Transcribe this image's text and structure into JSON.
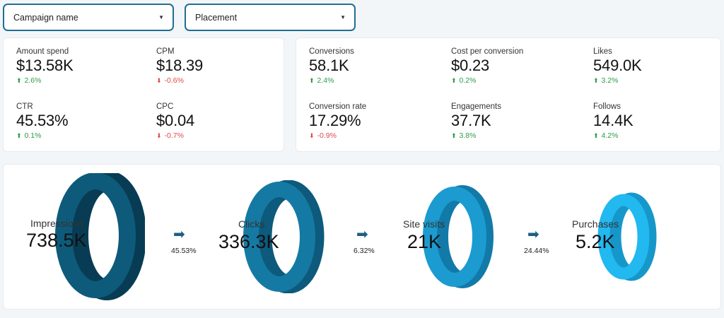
{
  "filters": {
    "campaign": {
      "label": "Campaign name"
    },
    "placement": {
      "label": "Placement"
    }
  },
  "left_metrics": [
    {
      "label": "Amount spend",
      "value": "$13.58K",
      "delta": "2.6%",
      "direction": "up"
    },
    {
      "label": "CPM",
      "value": "$18.39",
      "delta": "-0.6%",
      "direction": "down"
    },
    {
      "label": "CTR",
      "value": "45.53%",
      "delta": "0.1%",
      "direction": "up"
    },
    {
      "label": "CPC",
      "value": "$0.04",
      "delta": "-0.7%",
      "direction": "down"
    }
  ],
  "right_metrics": [
    {
      "label": "Conversions",
      "value": "58.1K",
      "delta": "2.4%",
      "direction": "up"
    },
    {
      "label": "Cost per conversion",
      "value": "$0.23",
      "delta": "0.2%",
      "direction": "up"
    },
    {
      "label": "Likes",
      "value": "549.0K",
      "delta": "3.2%",
      "direction": "up"
    },
    {
      "label": "Conversion rate",
      "value": "17.29%",
      "delta": "-0.9%",
      "direction": "down"
    },
    {
      "label": "Engagements",
      "value": "37.7K",
      "delta": "3.8%",
      "direction": "up"
    },
    {
      "label": "Follows",
      "value": "14.4K",
      "delta": "4.2%",
      "direction": "up"
    }
  ],
  "funnel": {
    "stages": [
      {
        "label": "Impressions",
        "value": "738.5K",
        "color": "#0e5a7a",
        "dark": "#083c54"
      },
      {
        "label": "Clicks",
        "value": "336.3K",
        "color": "#157aa3",
        "dark": "#0d5a7c"
      },
      {
        "label": "Site visits",
        "value": "21K",
        "color": "#1b9bd0",
        "dark": "#127aa8"
      },
      {
        "label": "Purchases",
        "value": "5.2K",
        "color": "#22b8f0",
        "dark": "#1697c9"
      }
    ],
    "conversion_rates": [
      "45.53%",
      "6.32%",
      "24.44%"
    ]
  },
  "colors": {
    "accent_border": "#1f6f93",
    "positive": "#2e9a46",
    "negative": "#e04848"
  }
}
